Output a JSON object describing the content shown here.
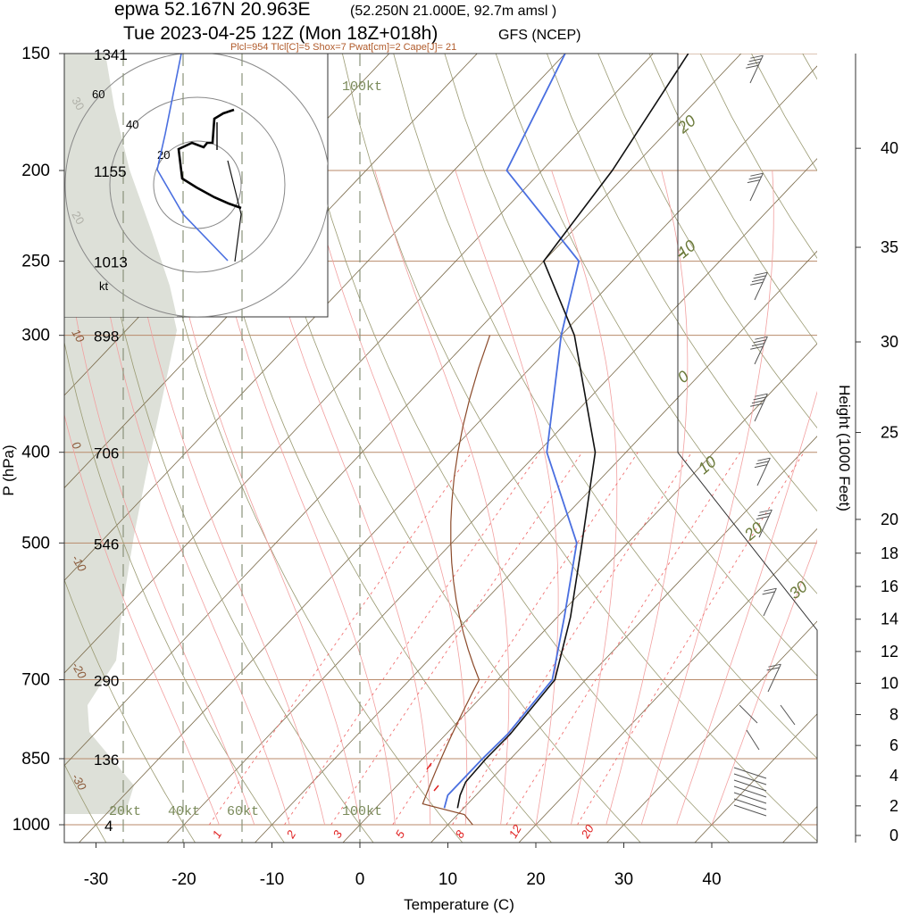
{
  "header": {
    "line1_main": "epwa 52.167N 20.963E",
    "line1_sub": "(52.250N 21.000E,  92.7m amsl )",
    "line2_main": "Tue 2023-04-25 12Z (Mon 18Z+018h)",
    "line2_sub": "GFS (NCEP)",
    "indices": "Plcl=954 Tlcl[C]=5 Shox=7 Pwat[cm]=2 Cape[J]= 21"
  },
  "colors": {
    "temperature": "#111111",
    "dewpoint": "#4a6fe0",
    "isotherm": "#7a6a4a",
    "isobar": "#b88a6a",
    "dry_adiabat": "#9a9a72",
    "moist_adiabat": "#f2a0a0",
    "mixing_ratio": "#f07070",
    "parcel": "#8b4a2a",
    "humidity_fill": "#dde0d8",
    "wind_label": "#6b7a3a"
  },
  "chart_data": {
    "type": "skew-t",
    "xlabel": "Temperature (C)",
    "ylabel": "P (hPa)",
    "y2label": "Height (1000 Feet)",
    "x_ticks": [
      -30,
      -20,
      -10,
      0,
      10,
      20,
      30,
      40
    ],
    "pressure_levels": [
      150,
      200,
      250,
      300,
      400,
      500,
      700,
      850,
      1000
    ],
    "geopotential_m": [
      "1341",
      "1155",
      "1013",
      "898",
      "706",
      "546",
      "290",
      "136",
      "4"
    ],
    "height_kft_ticks": [
      0,
      2,
      4,
      6,
      8,
      10,
      12,
      14,
      16,
      18,
      20,
      25,
      30,
      35,
      40
    ],
    "temperature_profile": [
      {
        "p": 960,
        "t": 9.3
      },
      {
        "p": 930,
        "t": 8.2
      },
      {
        "p": 900,
        "t": 7.4
      },
      {
        "p": 850,
        "t": 7.2
      },
      {
        "p": 800,
        "t": 7.3
      },
      {
        "p": 700,
        "t": 6.5
      },
      {
        "p": 600,
        "t": 1.5
      },
      {
        "p": 500,
        "t": -5.2
      },
      {
        "p": 400,
        "t": -13.5
      },
      {
        "p": 300,
        "t": -28.5
      },
      {
        "p": 250,
        "t": -40.0
      },
      {
        "p": 200,
        "t": -42.0
      },
      {
        "p": 150,
        "t": -46.0
      }
    ],
    "dewpoint_profile": [
      {
        "p": 960,
        "t": 7.8
      },
      {
        "p": 930,
        "t": 6.8
      },
      {
        "p": 900,
        "t": 6.8
      },
      {
        "p": 850,
        "t": 6.8
      },
      {
        "p": 800,
        "t": 7.0
      },
      {
        "p": 700,
        "t": 6.2
      },
      {
        "p": 600,
        "t": 0.8
      },
      {
        "p": 500,
        "t": -5.8
      },
      {
        "p": 400,
        "t": -19.0
      },
      {
        "p": 300,
        "t": -30.0
      },
      {
        "p": 250,
        "t": -36.0
      },
      {
        "p": 200,
        "t": -54.0
      },
      {
        "p": 150,
        "t": -60.0
      }
    ],
    "isotherm_labels": [
      "-30",
      "-20",
      "-10",
      "0",
      "10",
      "20",
      "30"
    ],
    "mixing_ratio_labels": [
      "1",
      "2",
      "3",
      "5",
      "8",
      "12",
      "20"
    ],
    "hodograph": {
      "ring_labels": [
        "20",
        "40",
        "60"
      ],
      "unit": "kt",
      "line_labels": [
        "20kt",
        "40kt",
        "60kt",
        "100kt"
      ]
    }
  }
}
